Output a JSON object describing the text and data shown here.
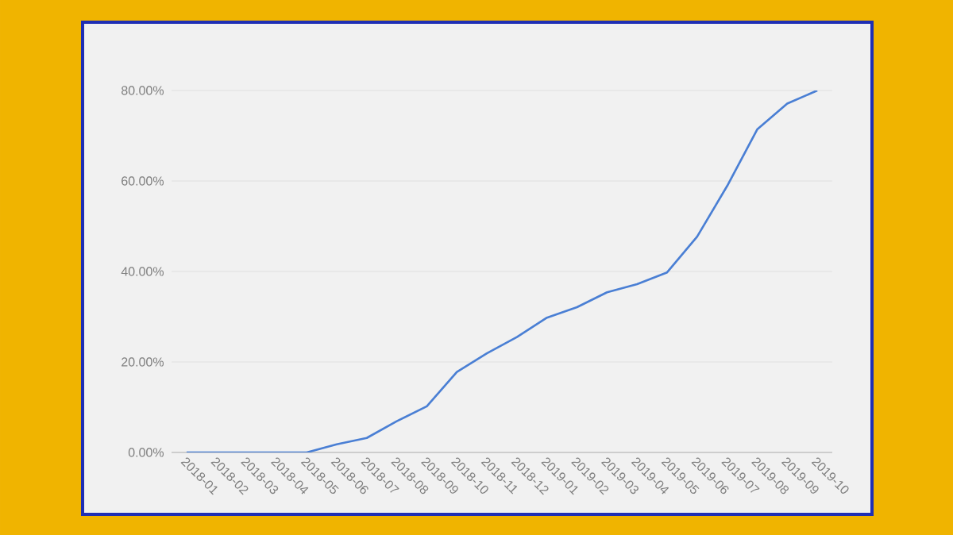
{
  "chart_data": {
    "type": "line",
    "categories": [
      "2018-01",
      "2018-02",
      "2018-03",
      "2018-04",
      "2018-05",
      "2018-06",
      "2018-07",
      "2018-08",
      "2018-09",
      "2018-10",
      "2018-11",
      "2018-12",
      "2019-01",
      "2019-02",
      "2019-03",
      "2019-04",
      "2019-05",
      "2019-06",
      "2019-07",
      "2019-08",
      "2019-09",
      "2019-10"
    ],
    "values": [
      0,
      0,
      0,
      0,
      0,
      1.8,
      3.2,
      6.9,
      10.2,
      17.8,
      21.9,
      25.5,
      29.8,
      32.1,
      35.4,
      37.2,
      39.8,
      47.7,
      58.9,
      71.4,
      77.1,
      80
    ],
    "color": "#4a7fd4",
    "ylim": [
      0,
      80
    ],
    "yticks": [
      {
        "value": 0,
        "label": "0.00%"
      },
      {
        "value": 20,
        "label": "20.00%"
      },
      {
        "value": 40,
        "label": "40.00%"
      },
      {
        "value": 60,
        "label": "60.00%"
      },
      {
        "value": 80,
        "label": "80.00%"
      }
    ],
    "grid": "y",
    "marker": "none",
    "line_style": "solid"
  }
}
